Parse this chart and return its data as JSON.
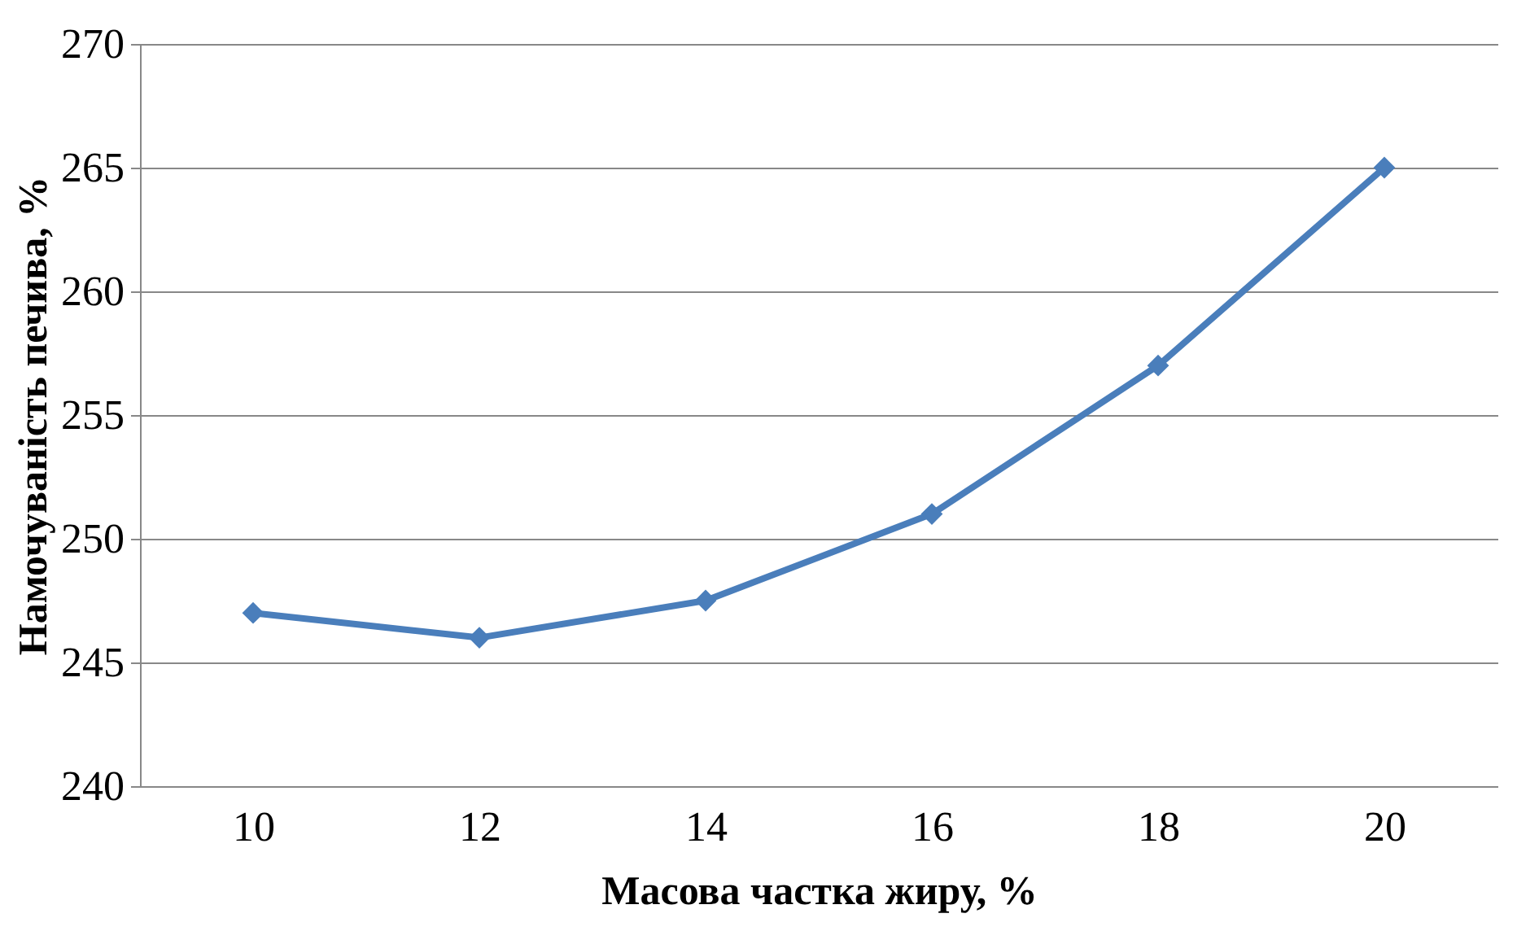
{
  "chart_data": {
    "type": "line",
    "xlabel": "Масова частка жиру, %",
    "ylabel": "Намочуваність печива, %",
    "categories": [
      "10",
      "12",
      "14",
      "16",
      "18",
      "20"
    ],
    "series": [
      {
        "color": "#4a7ebb",
        "values": [
          247,
          246,
          247.5,
          251,
          257,
          265
        ]
      }
    ],
    "ylim": [
      240,
      270
    ],
    "yticks": [
      240,
      245,
      250,
      255,
      260,
      265,
      270
    ],
    "grid": "y",
    "marker": "diamond",
    "line_style": "solid"
  }
}
